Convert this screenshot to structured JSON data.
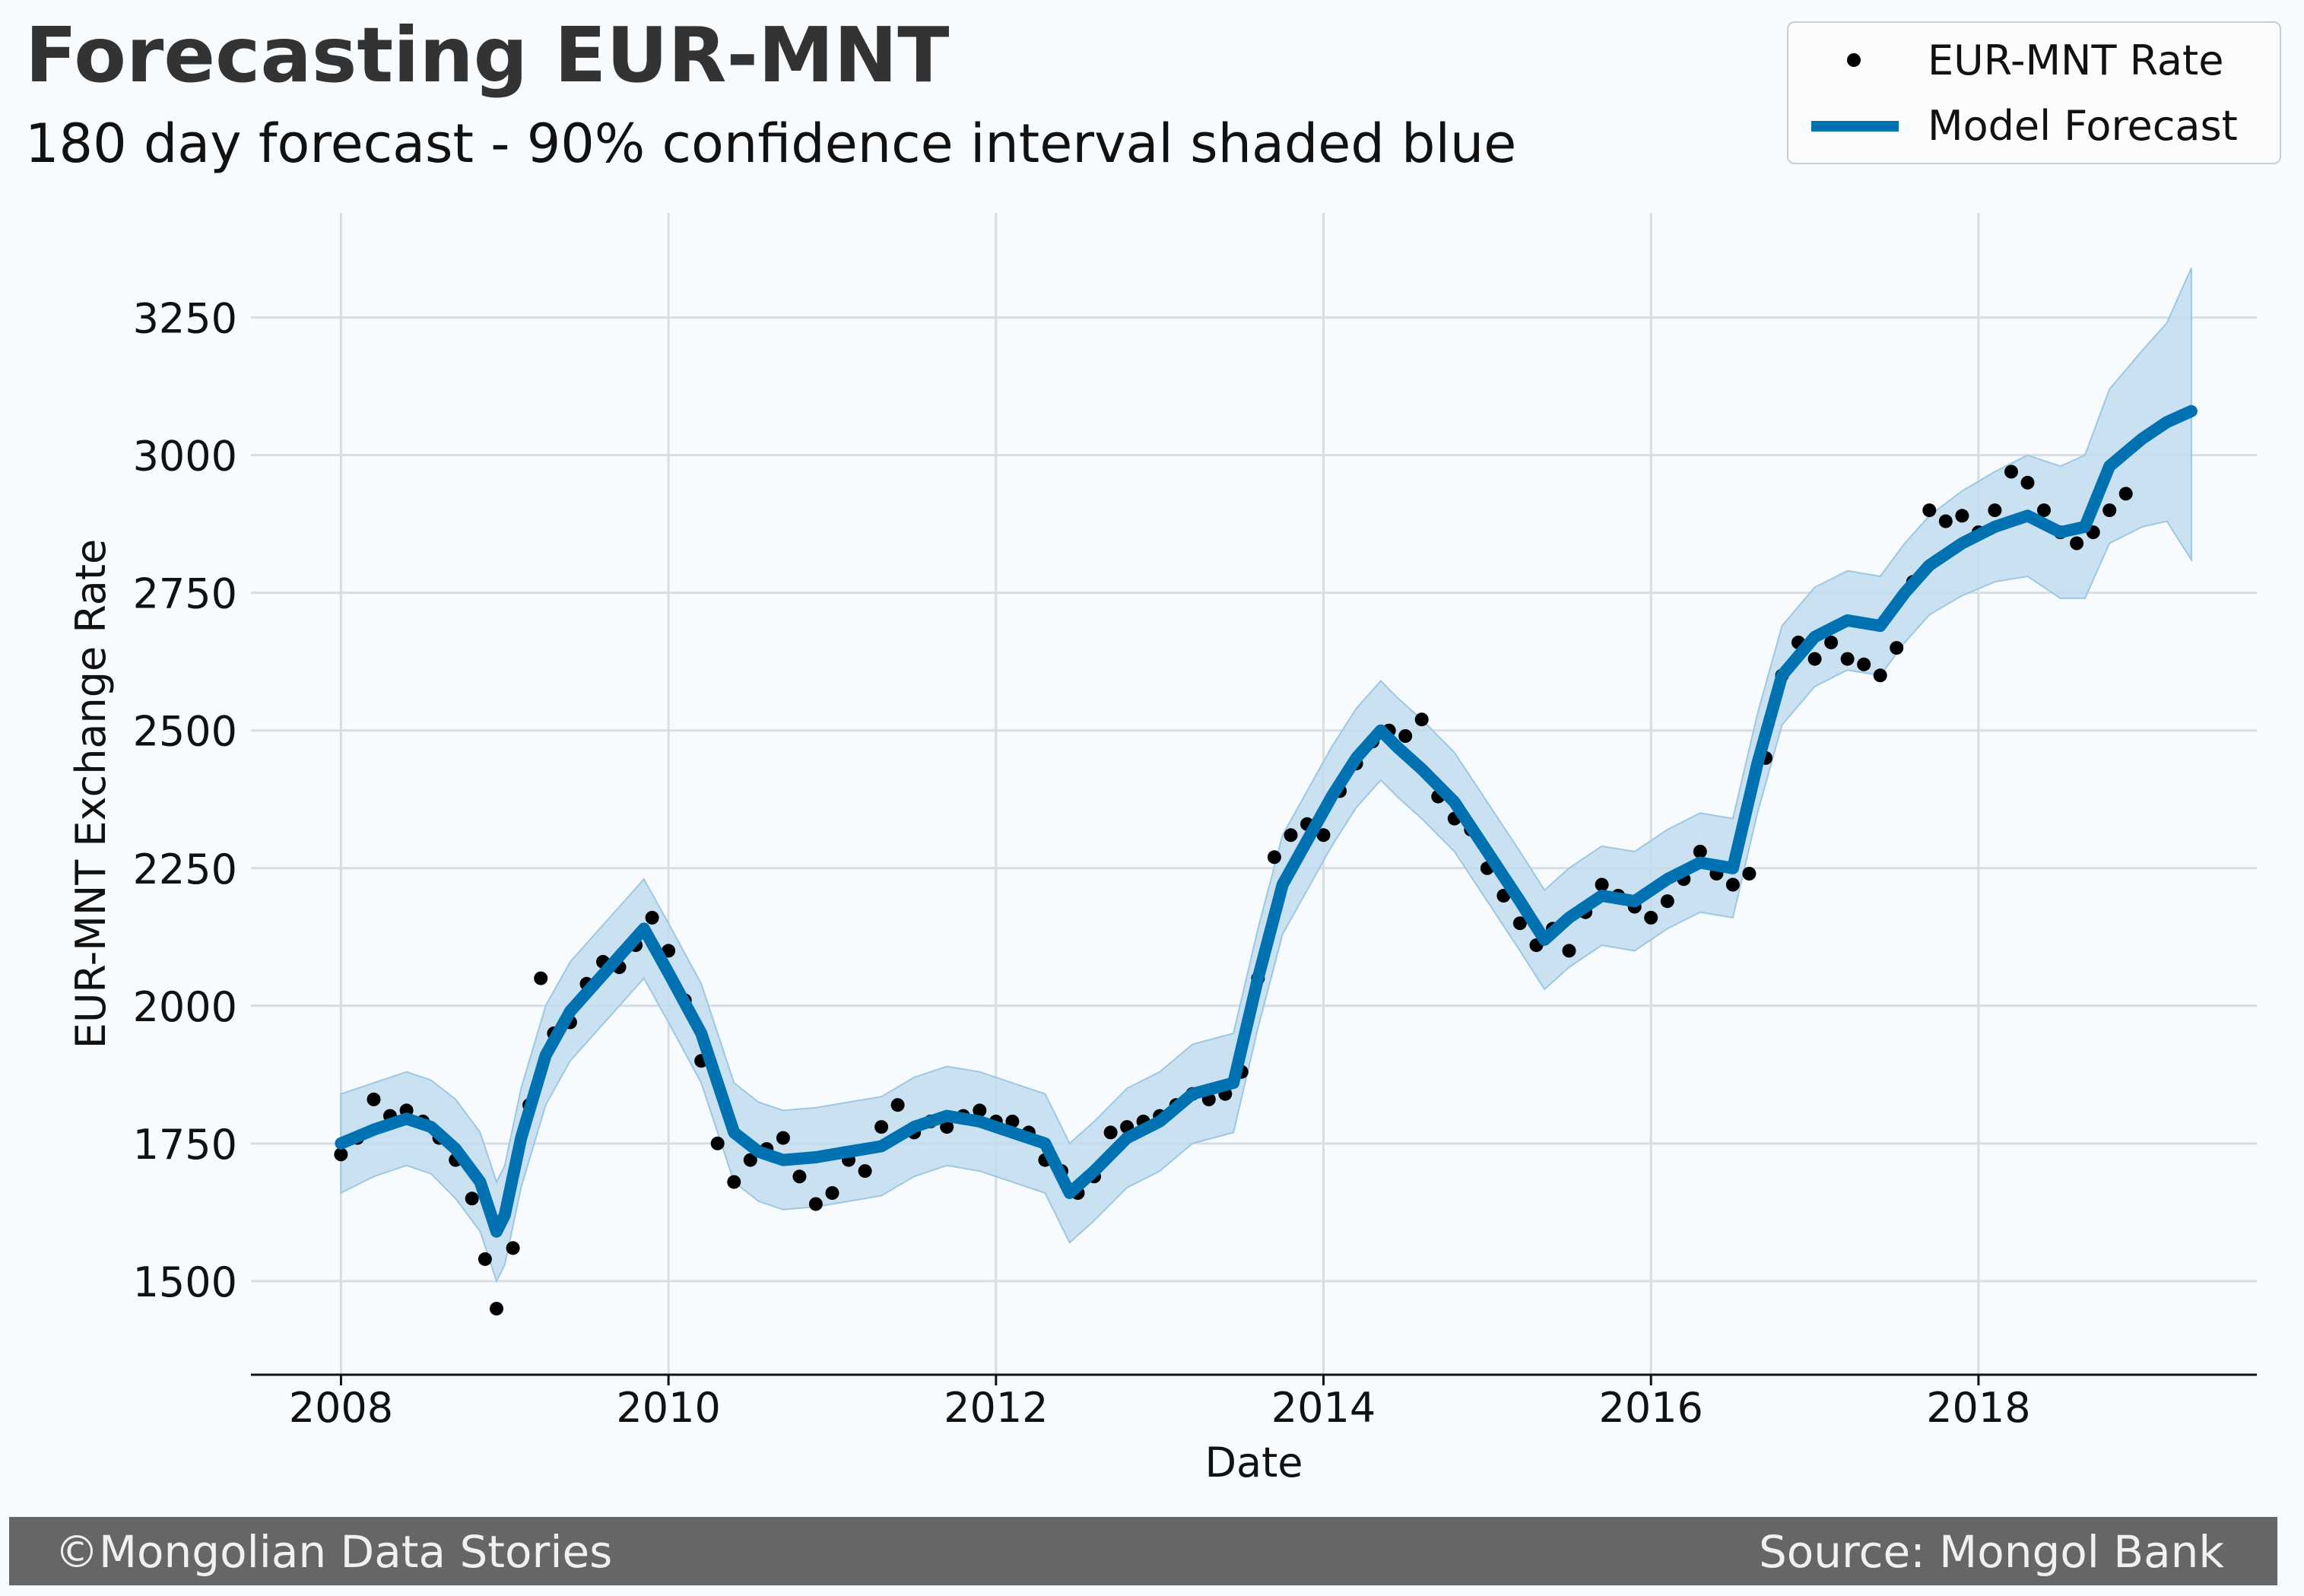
{
  "header": {
    "title": "Forecasting EUR-MNT",
    "subtitle": "180 day forecast - 90% confidence interval shaded blue"
  },
  "legend": {
    "rate_label": "EUR-MNT Rate",
    "forecast_label": "Model Forecast"
  },
  "footer": {
    "left": "©Mongolian Data Stories",
    "right": "Source: Mongol Bank"
  },
  "colors": {
    "observed": "#000000",
    "forecast": "#0072b2",
    "band": "#c2dcee",
    "background": "#f8fbfe",
    "grid": "#d7dde3",
    "footer": "#666666"
  },
  "chart_data": {
    "type": "line",
    "title": "Forecasting EUR-MNT",
    "subtitle": "180 day forecast - 90% confidence interval shaded blue",
    "xlabel": "Date",
    "ylabel": "EUR-MNT Exchange Rate",
    "xlim": [
      2007.45,
      2019.7
    ],
    "ylim": [
      1330,
      3440
    ],
    "x_ticks": [
      2008,
      2010,
      2012,
      2014,
      2016,
      2018
    ],
    "x_tick_labels": [
      "2008",
      "2010",
      "2012",
      "2014",
      "2016",
      "2018"
    ],
    "y_ticks": [
      1500,
      1750,
      2000,
      2250,
      2500,
      2750,
      3000,
      3250
    ],
    "y_tick_labels": [
      "1500",
      "1750",
      "2000",
      "2250",
      "2500",
      "2750",
      "3000",
      "3250"
    ],
    "grid": true,
    "legend_position": "top-right",
    "series": [
      {
        "name": "Model Forecast",
        "style": "line",
        "x": [
          2008.0,
          2008.2,
          2008.4,
          2008.55,
          2008.7,
          2008.85,
          2008.95,
          2009.0,
          2009.1,
          2009.25,
          2009.4,
          2009.55,
          2009.7,
          2009.85,
          2010.0,
          2010.2,
          2010.4,
          2010.55,
          2010.7,
          2010.9,
          2011.1,
          2011.3,
          2011.5,
          2011.7,
          2011.9,
          2012.1,
          2012.3,
          2012.45,
          2012.6,
          2012.8,
          2013.0,
          2013.2,
          2013.45,
          2013.6,
          2013.75,
          2013.9,
          2014.05,
          2014.2,
          2014.35,
          2014.45,
          2014.6,
          2014.8,
          2015.0,
          2015.2,
          2015.35,
          2015.5,
          2015.7,
          2015.9,
          2016.1,
          2016.3,
          2016.5,
          2016.65,
          2016.8,
          2017.0,
          2017.2,
          2017.4,
          2017.55,
          2017.7,
          2017.9,
          2018.1,
          2018.3,
          2018.5,
          2018.65,
          2018.8,
          2019.0,
          2019.15,
          2019.3
        ],
        "y": [
          1750,
          1775,
          1795,
          1780,
          1740,
          1680,
          1590,
          1620,
          1760,
          1910,
          1990,
          2040,
          2090,
          2140,
          2060,
          1950,
          1770,
          1735,
          1720,
          1725,
          1735,
          1745,
          1780,
          1800,
          1790,
          1770,
          1750,
          1660,
          1700,
          1760,
          1790,
          1840,
          1860,
          2050,
          2220,
          2300,
          2380,
          2450,
          2500,
          2470,
          2430,
          2370,
          2280,
          2190,
          2120,
          2160,
          2200,
          2190,
          2230,
          2260,
          2250,
          2440,
          2600,
          2670,
          2700,
          2690,
          2750,
          2800,
          2840,
          2870,
          2890,
          2860,
          2870,
          2980,
          3030,
          3060,
          3080
        ]
      },
      {
        "name": "EUR-MNT Rate",
        "style": "points",
        "x": [
          2008.0,
          2008.1,
          2008.2,
          2008.3,
          2008.4,
          2008.5,
          2008.6,
          2008.7,
          2008.8,
          2008.88,
          2008.95,
          2009.05,
          2009.15,
          2009.22,
          2009.3,
          2009.4,
          2009.5,
          2009.6,
          2009.7,
          2009.8,
          2009.9,
          2010.0,
          2010.1,
          2010.2,
          2010.3,
          2010.4,
          2010.5,
          2010.6,
          2010.7,
          2010.8,
          2010.9,
          2011.0,
          2011.1,
          2011.2,
          2011.3,
          2011.4,
          2011.5,
          2011.6,
          2011.7,
          2011.8,
          2011.9,
          2012.0,
          2012.1,
          2012.2,
          2012.3,
          2012.4,
          2012.5,
          2012.6,
          2012.7,
          2012.8,
          2012.9,
          2013.0,
          2013.1,
          2013.2,
          2013.3,
          2013.4,
          2013.5,
          2013.6,
          2013.7,
          2013.8,
          2013.9,
          2014.0,
          2014.1,
          2014.2,
          2014.3,
          2014.4,
          2014.5,
          2014.6,
          2014.7,
          2014.8,
          2014.9,
          2015.0,
          2015.1,
          2015.2,
          2015.3,
          2015.4,
          2015.5,
          2015.6,
          2015.7,
          2015.8,
          2015.9,
          2016.0,
          2016.1,
          2016.2,
          2016.3,
          2016.4,
          2016.5,
          2016.6,
          2016.7,
          2016.8,
          2016.9,
          2017.0,
          2017.1,
          2017.2,
          2017.3,
          2017.4,
          2017.5,
          2017.6,
          2017.7,
          2017.8,
          2017.9,
          2018.0,
          2018.1,
          2018.2,
          2018.3,
          2018.4,
          2018.5,
          2018.6,
          2018.7,
          2018.8,
          2018.9
        ],
        "y": [
          1730,
          1760,
          1830,
          1800,
          1810,
          1790,
          1760,
          1720,
          1650,
          1540,
          1450,
          1560,
          1820,
          2050,
          1950,
          1970,
          2040,
          2080,
          2070,
          2110,
          2160,
          2100,
          2010,
          1900,
          1750,
          1680,
          1720,
          1740,
          1760,
          1690,
          1640,
          1660,
          1720,
          1700,
          1780,
          1820,
          1770,
          1790,
          1780,
          1800,
          1810,
          1790,
          1790,
          1770,
          1720,
          1700,
          1660,
          1690,
          1770,
          1780,
          1790,
          1800,
          1820,
          1840,
          1830,
          1840,
          1880,
          2050,
          2270,
          2310,
          2330,
          2310,
          2390,
          2440,
          2480,
          2500,
          2490,
          2520,
          2380,
          2340,
          2320,
          2250,
          2200,
          2150,
          2110,
          2140,
          2100,
          2170,
          2220,
          2200,
          2180,
          2160,
          2190,
          2230,
          2280,
          2240,
          2220,
          2240,
          2450,
          2600,
          2660,
          2630,
          2660,
          2630,
          2620,
          2600,
          2650,
          2770,
          2900,
          2880,
          2890,
          2860,
          2900,
          2970,
          2950,
          2900,
          2860,
          2840,
          2860,
          2900,
          2930
        ]
      }
    ],
    "confidence_band": {
      "name": "90% confidence interval",
      "x": [
        2008.0,
        2008.2,
        2008.4,
        2008.55,
        2008.7,
        2008.85,
        2008.95,
        2009.0,
        2009.1,
        2009.25,
        2009.4,
        2009.55,
        2009.7,
        2009.85,
        2010.0,
        2010.2,
        2010.4,
        2010.55,
        2010.7,
        2010.9,
        2011.1,
        2011.3,
        2011.5,
        2011.7,
        2011.9,
        2012.1,
        2012.3,
        2012.45,
        2012.6,
        2012.8,
        2013.0,
        2013.2,
        2013.45,
        2013.6,
        2013.75,
        2013.9,
        2014.05,
        2014.2,
        2014.35,
        2014.45,
        2014.6,
        2014.8,
        2015.0,
        2015.2,
        2015.35,
        2015.5,
        2015.7,
        2015.9,
        2016.1,
        2016.3,
        2016.5,
        2016.65,
        2016.8,
        2017.0,
        2017.2,
        2017.4,
        2017.55,
        2017.7,
        2017.9,
        2018.1,
        2018.3,
        2018.5,
        2018.65,
        2018.8,
        2019.0,
        2019.15,
        2019.3
      ],
      "upper": [
        1840,
        1860,
        1880,
        1865,
        1830,
        1770,
        1680,
        1710,
        1850,
        2000,
        2080,
        2130,
        2180,
        2230,
        2150,
        2040,
        1860,
        1825,
        1810,
        1815,
        1825,
        1835,
        1870,
        1890,
        1880,
        1860,
        1840,
        1750,
        1790,
        1850,
        1880,
        1930,
        1950,
        2140,
        2310,
        2390,
        2470,
        2540,
        2590,
        2560,
        2520,
        2460,
        2370,
        2280,
        2210,
        2250,
        2290,
        2280,
        2320,
        2350,
        2340,
        2530,
        2690,
        2760,
        2790,
        2780,
        2840,
        2890,
        2935,
        2970,
        3000,
        2980,
        3000,
        3120,
        3190,
        3240,
        3340
      ],
      "lower": [
        1660,
        1690,
        1710,
        1695,
        1650,
        1590,
        1500,
        1530,
        1670,
        1820,
        1900,
        1950,
        2000,
        2050,
        1970,
        1860,
        1680,
        1645,
        1630,
        1635,
        1645,
        1655,
        1690,
        1710,
        1700,
        1680,
        1660,
        1570,
        1610,
        1670,
        1700,
        1750,
        1770,
        1960,
        2130,
        2210,
        2290,
        2360,
        2410,
        2380,
        2340,
        2280,
        2190,
        2100,
        2030,
        2070,
        2110,
        2100,
        2140,
        2170,
        2160,
        2350,
        2510,
        2580,
        2610,
        2600,
        2660,
        2710,
        2745,
        2770,
        2780,
        2740,
        2740,
        2840,
        2870,
        2880,
        2810
      ]
    }
  }
}
